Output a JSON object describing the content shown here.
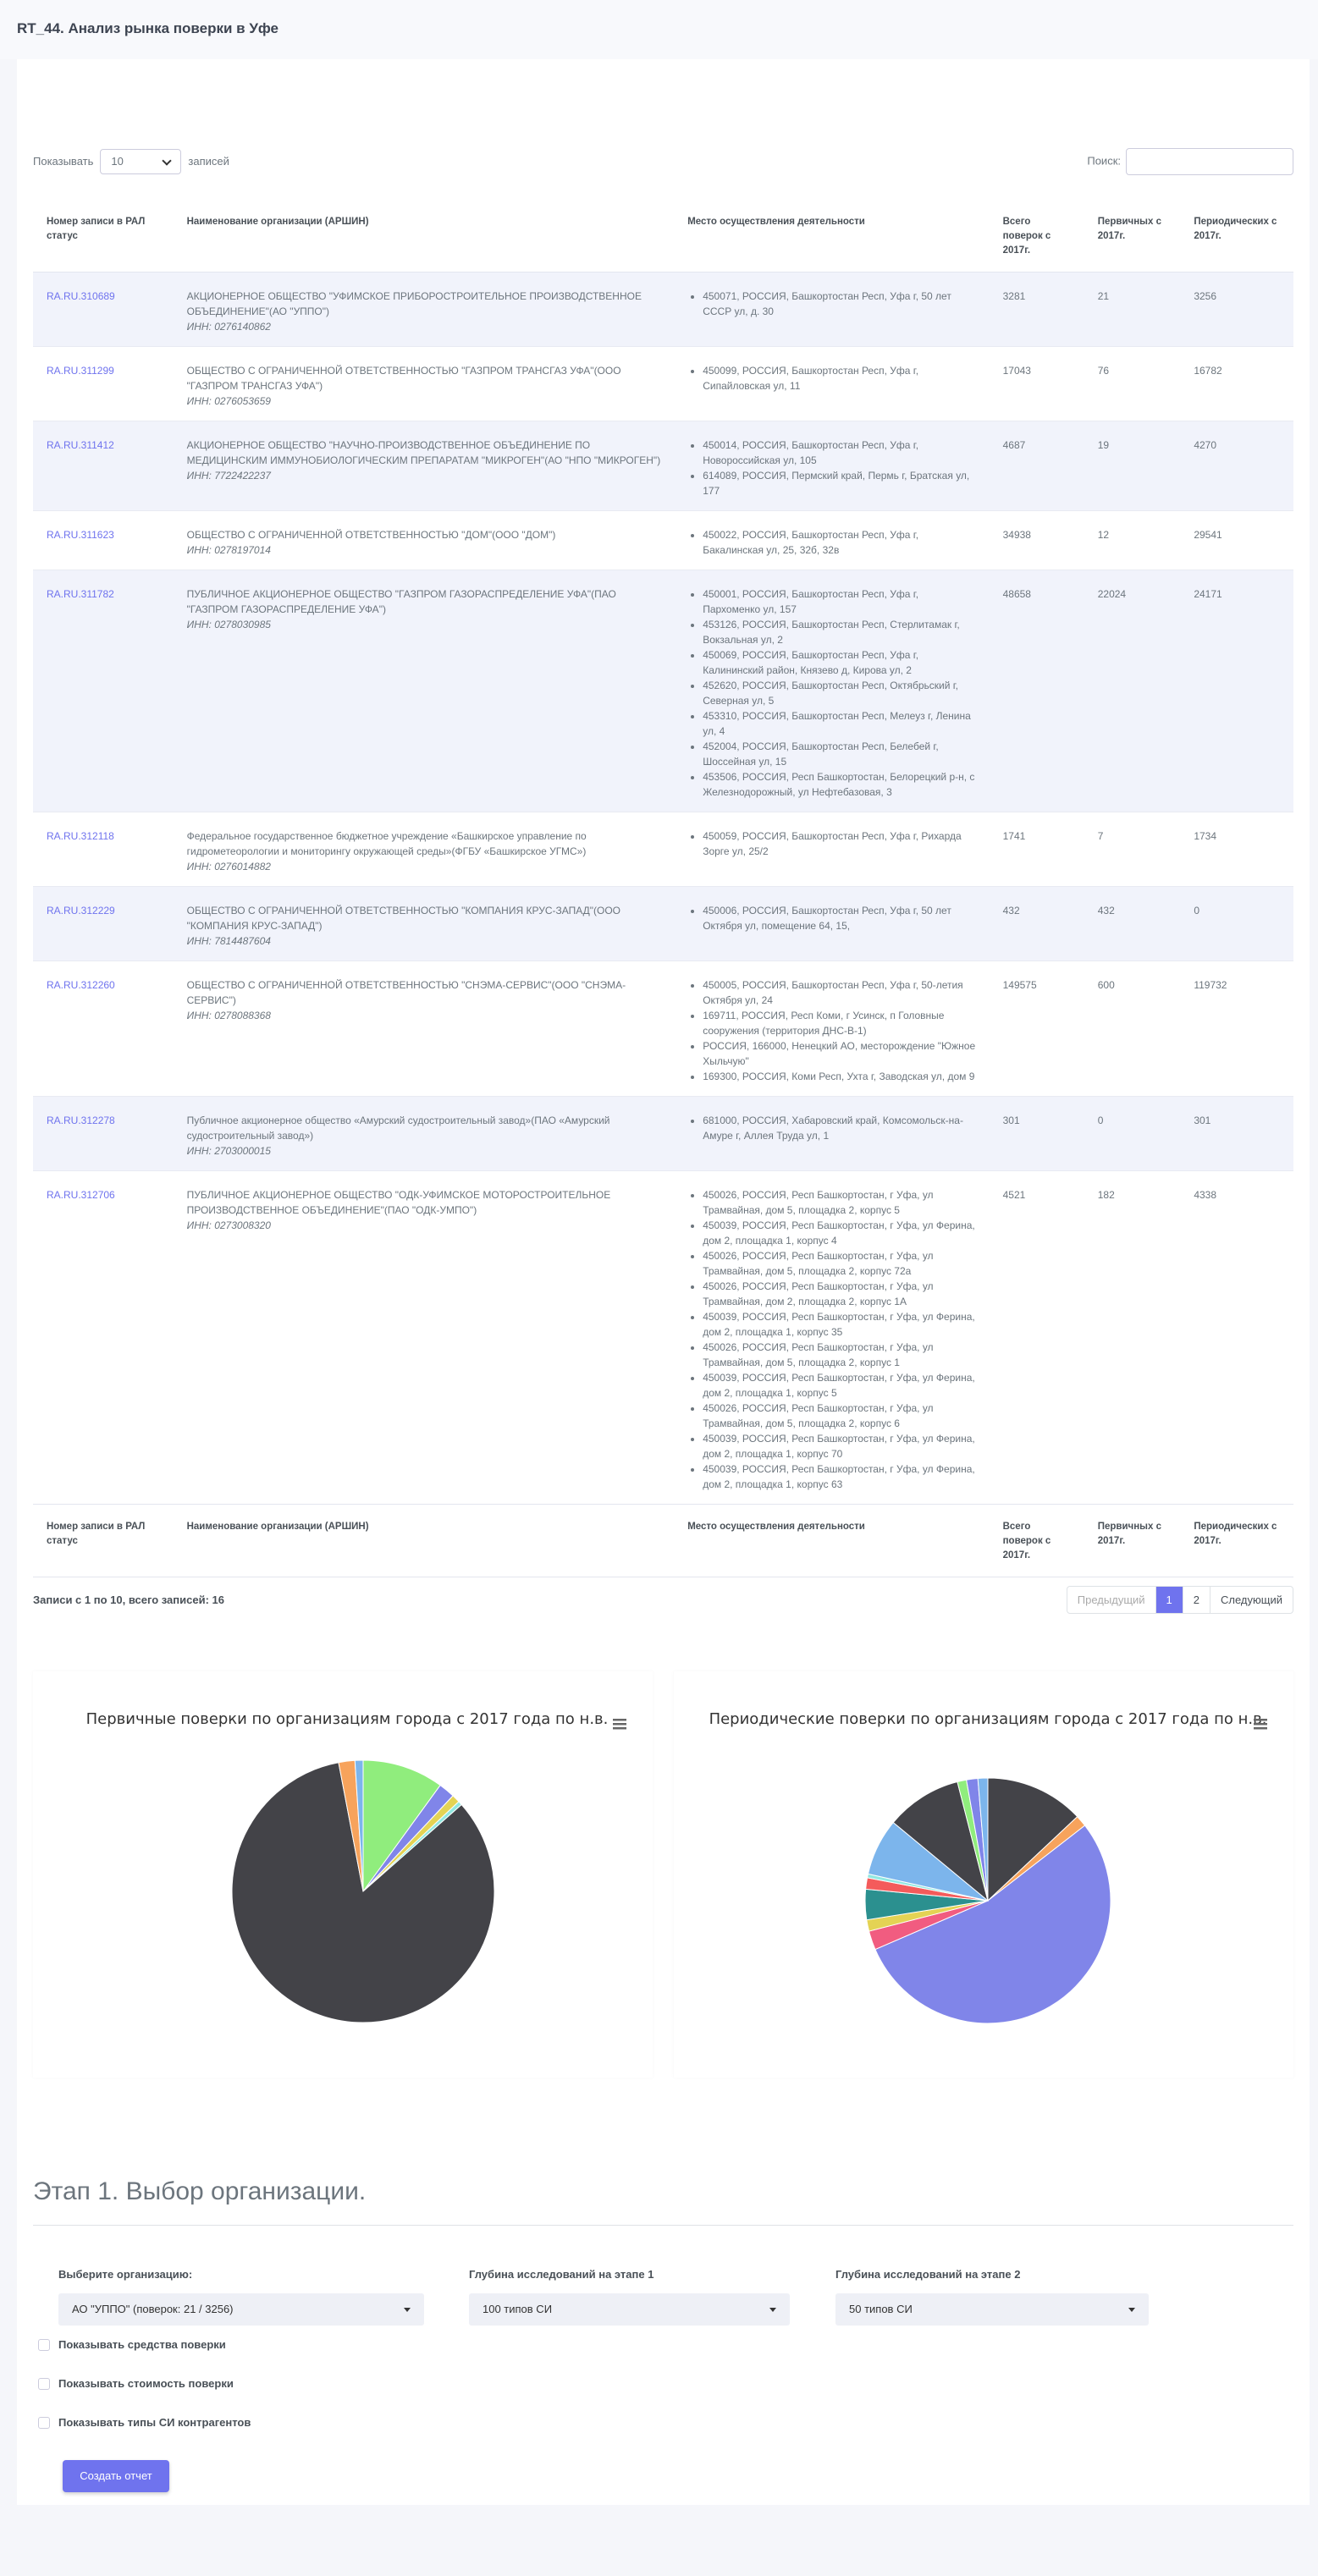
{
  "header": {
    "title": "RT_44. Анализ рынка поверки в Уфе"
  },
  "controls": {
    "show_label": "Показывать",
    "show_value": "10",
    "show_suffix": "записей",
    "search_label": "Поиск:"
  },
  "table": {
    "columns": [
      "Номер записи в РАЛ статус",
      "Наименование организации (АРШИН)",
      "Место осуществления деятельности",
      "Всего поверок с 2017г.",
      "Первичных с 2017г.",
      "Периодических с 2017г."
    ],
    "rows": [
      {
        "id": "RA.RU.310689",
        "org": "АКЦИОНЕРНОЕ ОБЩЕСТВО \"УФИМСКОЕ ПРИБОРОСТРОИТЕЛЬНОЕ ПРОИЗВОДСТВЕННОЕ ОБЪЕДИНЕНИЕ\"(АО \"УППО\")",
        "inn": "ИНН: 0276140862",
        "addresses": [
          "450071, РОССИЯ, Башкортостан Респ, Уфа г, 50 лет СССР ул, д. 30"
        ],
        "total": 3281,
        "primary": 21,
        "periodic": 3256
      },
      {
        "id": "RA.RU.311299",
        "org": "ОБЩЕСТВО С ОГРАНИЧЕННОЙ ОТВЕТСТВЕННОСТЬЮ \"ГАЗПРОМ ТРАНСГАЗ УФА\"(ООО \"ГАЗПРОМ ТРАНСГАЗ УФА\")",
        "inn": "ИНН: 0276053659",
        "addresses": [
          "450099, РОССИЯ, Башкортостан Респ, Уфа г, Сипайловская ул, 11"
        ],
        "total": 17043,
        "primary": 76,
        "periodic": 16782
      },
      {
        "id": "RA.RU.311412",
        "org": "АКЦИОНЕРНОЕ ОБЩЕСТВО \"НАУЧНО-ПРОИЗВОДСТВЕННОЕ ОБЪЕДИНЕНИЕ ПО МЕДИЦИНСКИМ ИММУНОБИОЛОГИЧЕСКИМ ПРЕПАРАТАМ \"МИКРОГЕН\"(АО \"НПО \"МИКРОГЕН\")",
        "inn": "ИНН: 7722422237",
        "addresses": [
          "450014, РОССИЯ, Башкортостан Респ, Уфа г, Новороссийская ул, 105",
          "614089, РОССИЯ, Пермский край, Пермь г, Братская ул, 177"
        ],
        "total": 4687,
        "primary": 19,
        "periodic": 4270
      },
      {
        "id": "RA.RU.311623",
        "org": "ОБЩЕСТВО С ОГРАНИЧЕННОЙ ОТВЕТСТВЕННОСТЬЮ \"ДОМ\"(ООО \"ДОМ\")",
        "inn": "ИНН: 0278197014",
        "addresses": [
          "450022, РОССИЯ, Башкортостан Респ, Уфа г, Бакалинская ул, 25, 32б, 32в"
        ],
        "total": 34938,
        "primary": 12,
        "periodic": 29541
      },
      {
        "id": "RA.RU.311782",
        "org": "ПУБЛИЧНОЕ АКЦИОНЕРНОЕ ОБЩЕСТВО \"ГАЗПРОМ ГАЗОРАСПРЕДЕЛЕНИЕ УФА\"(ПАО \"ГАЗПРОМ ГАЗОРАСПРЕДЕЛЕНИЕ УФА\")",
        "inn": "ИНН: 0278030985",
        "addresses": [
          "450001, РОССИЯ, Башкортостан Респ, Уфа г, Пархоменко ул, 157",
          "453126, РОССИЯ, Башкортостан Респ, Стерлитамак г, Вокзальная ул, 2",
          "450069, РОССИЯ, Башкортостан Респ, Уфа г, Калининский район, Князево д, Кирова ул, 2",
          "452620, РОССИЯ, Башкортостан Респ, Октябрьский г, Северная ул, 5",
          "453310, РОССИЯ, Башкортостан Респ, Мелеуз г, Ленина ул, 4",
          "452004, РОССИЯ, Башкортостан Респ, Белебей г, Шоссейная ул, 15",
          "453506, РОССИЯ, Респ Башкортостан, Белорецкий р-н, с Железнодорожный, ул Нефтебазовая, 3"
        ],
        "total": 48658,
        "primary": 22024,
        "periodic": 24171
      },
      {
        "id": "RA.RU.312118",
        "org": "Федеральное государственное бюджетное учреждение «Башкирское управление по гидрометеорологии и мониторингу окружающей среды»(ФГБУ «Башкирское УГМС»)",
        "inn": "ИНН: 0276014882",
        "addresses": [
          "450059, РОССИЯ, Башкортостан Респ, Уфа г, Рихарда Зорге ул, 25/2"
        ],
        "total": 1741,
        "primary": 7,
        "periodic": 1734
      },
      {
        "id": "RA.RU.312229",
        "org": "ОБЩЕСТВО С ОГРАНИЧЕННОЙ ОТВЕТСТВЕННОСТЬЮ \"КОМПАНИЯ КРУС-ЗАПАД\"(ООО \"КОМПАНИЯ КРУС-ЗАПАД\")",
        "inn": "ИНН: 7814487604",
        "addresses": [
          "450006, РОССИЯ, Башкортостан Респ, Уфа г, 50 лет Октября ул, помещение 64, 15,"
        ],
        "total": 432,
        "primary": 432,
        "periodic": 0
      },
      {
        "id": "RA.RU.312260",
        "org": "ОБЩЕСТВО С ОГРАНИЧЕННОЙ ОТВЕТСТВЕННОСТЬЮ \"СНЭМА-СЕРВИС\"(ООО \"СНЭМА-СЕРВИС\")",
        "inn": "ИНН: 0278088368",
        "addresses": [
          "450005, РОССИЯ, Башкортостан Респ, Уфа г, 50-летия Октября ул, 24",
          "169711, РОССИЯ, Респ Коми, г Усинск, п Головные сооружения (территория ДНС-В-1)",
          "РОССИЯ, 166000, Ненецкий АО, месторождение \"Южное Хыльчую\"",
          "169300, РОССИЯ, Коми Респ, Ухта г, Заводская ул, дом 9"
        ],
        "total": 149575,
        "primary": 600,
        "periodic": 119732
      },
      {
        "id": "RA.RU.312278",
        "org": "Публичное акционерное общество «Амурский судостроительный завод»(ПАО «Амурский судостроительный завод»)",
        "inn": "ИНН: 2703000015",
        "addresses": [
          "681000, РОССИЯ, Хабаровский край, Комсомольск-на-Амуре г, Аллея Труда ул, 1"
        ],
        "total": 301,
        "primary": 0,
        "periodic": 301
      },
      {
        "id": "RA.RU.312706",
        "org": "ПУБЛИЧНОЕ АКЦИОНЕРНОЕ ОБЩЕСТВО \"ОДК-УФИМСКОЕ МОТОРОСТРОИТЕЛЬНОЕ ПРОИЗВОДСТВЕННОЕ ОБЪЕДИНЕНИЕ\"(ПАО \"ОДК-УМПО\")",
        "inn": "ИНН: 0273008320",
        "addresses": [
          "450026, РОССИЯ, Респ Башкортостан, г Уфа, ул Трамвайная, дом 5, площадка 2, корпус 5",
          "450039, РОССИЯ, Респ Башкортостан, г Уфа, ул Ферина, дом 2, площадка 1, корпус 4",
          "450026, РОССИЯ, Респ Башкортостан, г Уфа, ул Трамвайная, дом 5, площадка 2, корпус 72а",
          "450026, РОССИЯ, Респ Башкортостан, г Уфа, ул Трамвайная, дом 2, площадка 2, корпус 1А",
          "450039, РОССИЯ, Респ Башкортостан, г Уфа, ул Ферина, дом 2, площадка 1, корпус 35",
          "450026, РОССИЯ, Респ Башкортостан, г Уфа, ул Трамвайная, дом 5, площадка 2, корпус 1",
          "450039, РОССИЯ, Респ Башкортостан, г Уфа, ул Ферина, дом 2, площадка 1, корпус 5",
          "450026, РОССИЯ, Респ Башкортостан, г Уфа, ул Трамвайная, дом 5, площадка 2, корпус 6",
          "450039, РОССИЯ, Респ Башкортостан, г Уфа, ул Ферина, дом 2, площадка 1, корпус 70",
          "450039, РОССИЯ, Респ Башкортостан, г Уфа, ул Ферина, дом 2, площадка 1, корпус 63"
        ],
        "total": 4521,
        "primary": 182,
        "periodic": 4338
      }
    ]
  },
  "info": "Записи с 1 по 10, всего записей: 16",
  "pagination": [
    "Предыдущий",
    "1",
    "2",
    "Следующий"
  ],
  "chart_data": [
    {
      "type": "pie",
      "title": "Первичные поверки по организациям города с 2017 года по н.в.",
      "values": [
        10,
        2,
        1,
        0.5,
        83.5,
        2,
        1
      ],
      "colors": [
        "#90ed7d",
        "#8085e9",
        "#e4d354",
        "#91e8e1",
        "#434348",
        "#f7a35c",
        "#7cb5ec"
      ]
    },
    {
      "type": "pie",
      "title": "Периодические поверки по организациям города с 2017 года по н.в.",
      "values": [
        13,
        1.5,
        54,
        2.5,
        1.5,
        4,
        1.5,
        0.5,
        7.5,
        10,
        1.2,
        1.5,
        1.3
      ],
      "colors": [
        "#434348",
        "#f7a35c",
        "#8085e9",
        "#f15c80",
        "#e4d354",
        "#2b908f",
        "#f45b5b",
        "#91e8e1",
        "#7cb5ec",
        "#434348",
        "#90ed7d",
        "#8085e9",
        "#7cb5ec"
      ]
    }
  ],
  "form": {
    "title": "Этап 1. Выбор организации.",
    "org_label": "Выберите организацию:",
    "org_value": "АО \"УППО\" (поверок: 21 / 3256)",
    "depth1_label": "Глубина исследований на этапе 1",
    "depth1_value": "100 типов СИ",
    "depth2_label": "Глубина исследований на этапе 2",
    "depth2_value": "50 типов СИ",
    "checkboxes": [
      "Показывать средства поверки",
      "Показывать стоимость поверки",
      "Показывать типы СИ контрагентов"
    ],
    "button": "Создать отчет"
  }
}
